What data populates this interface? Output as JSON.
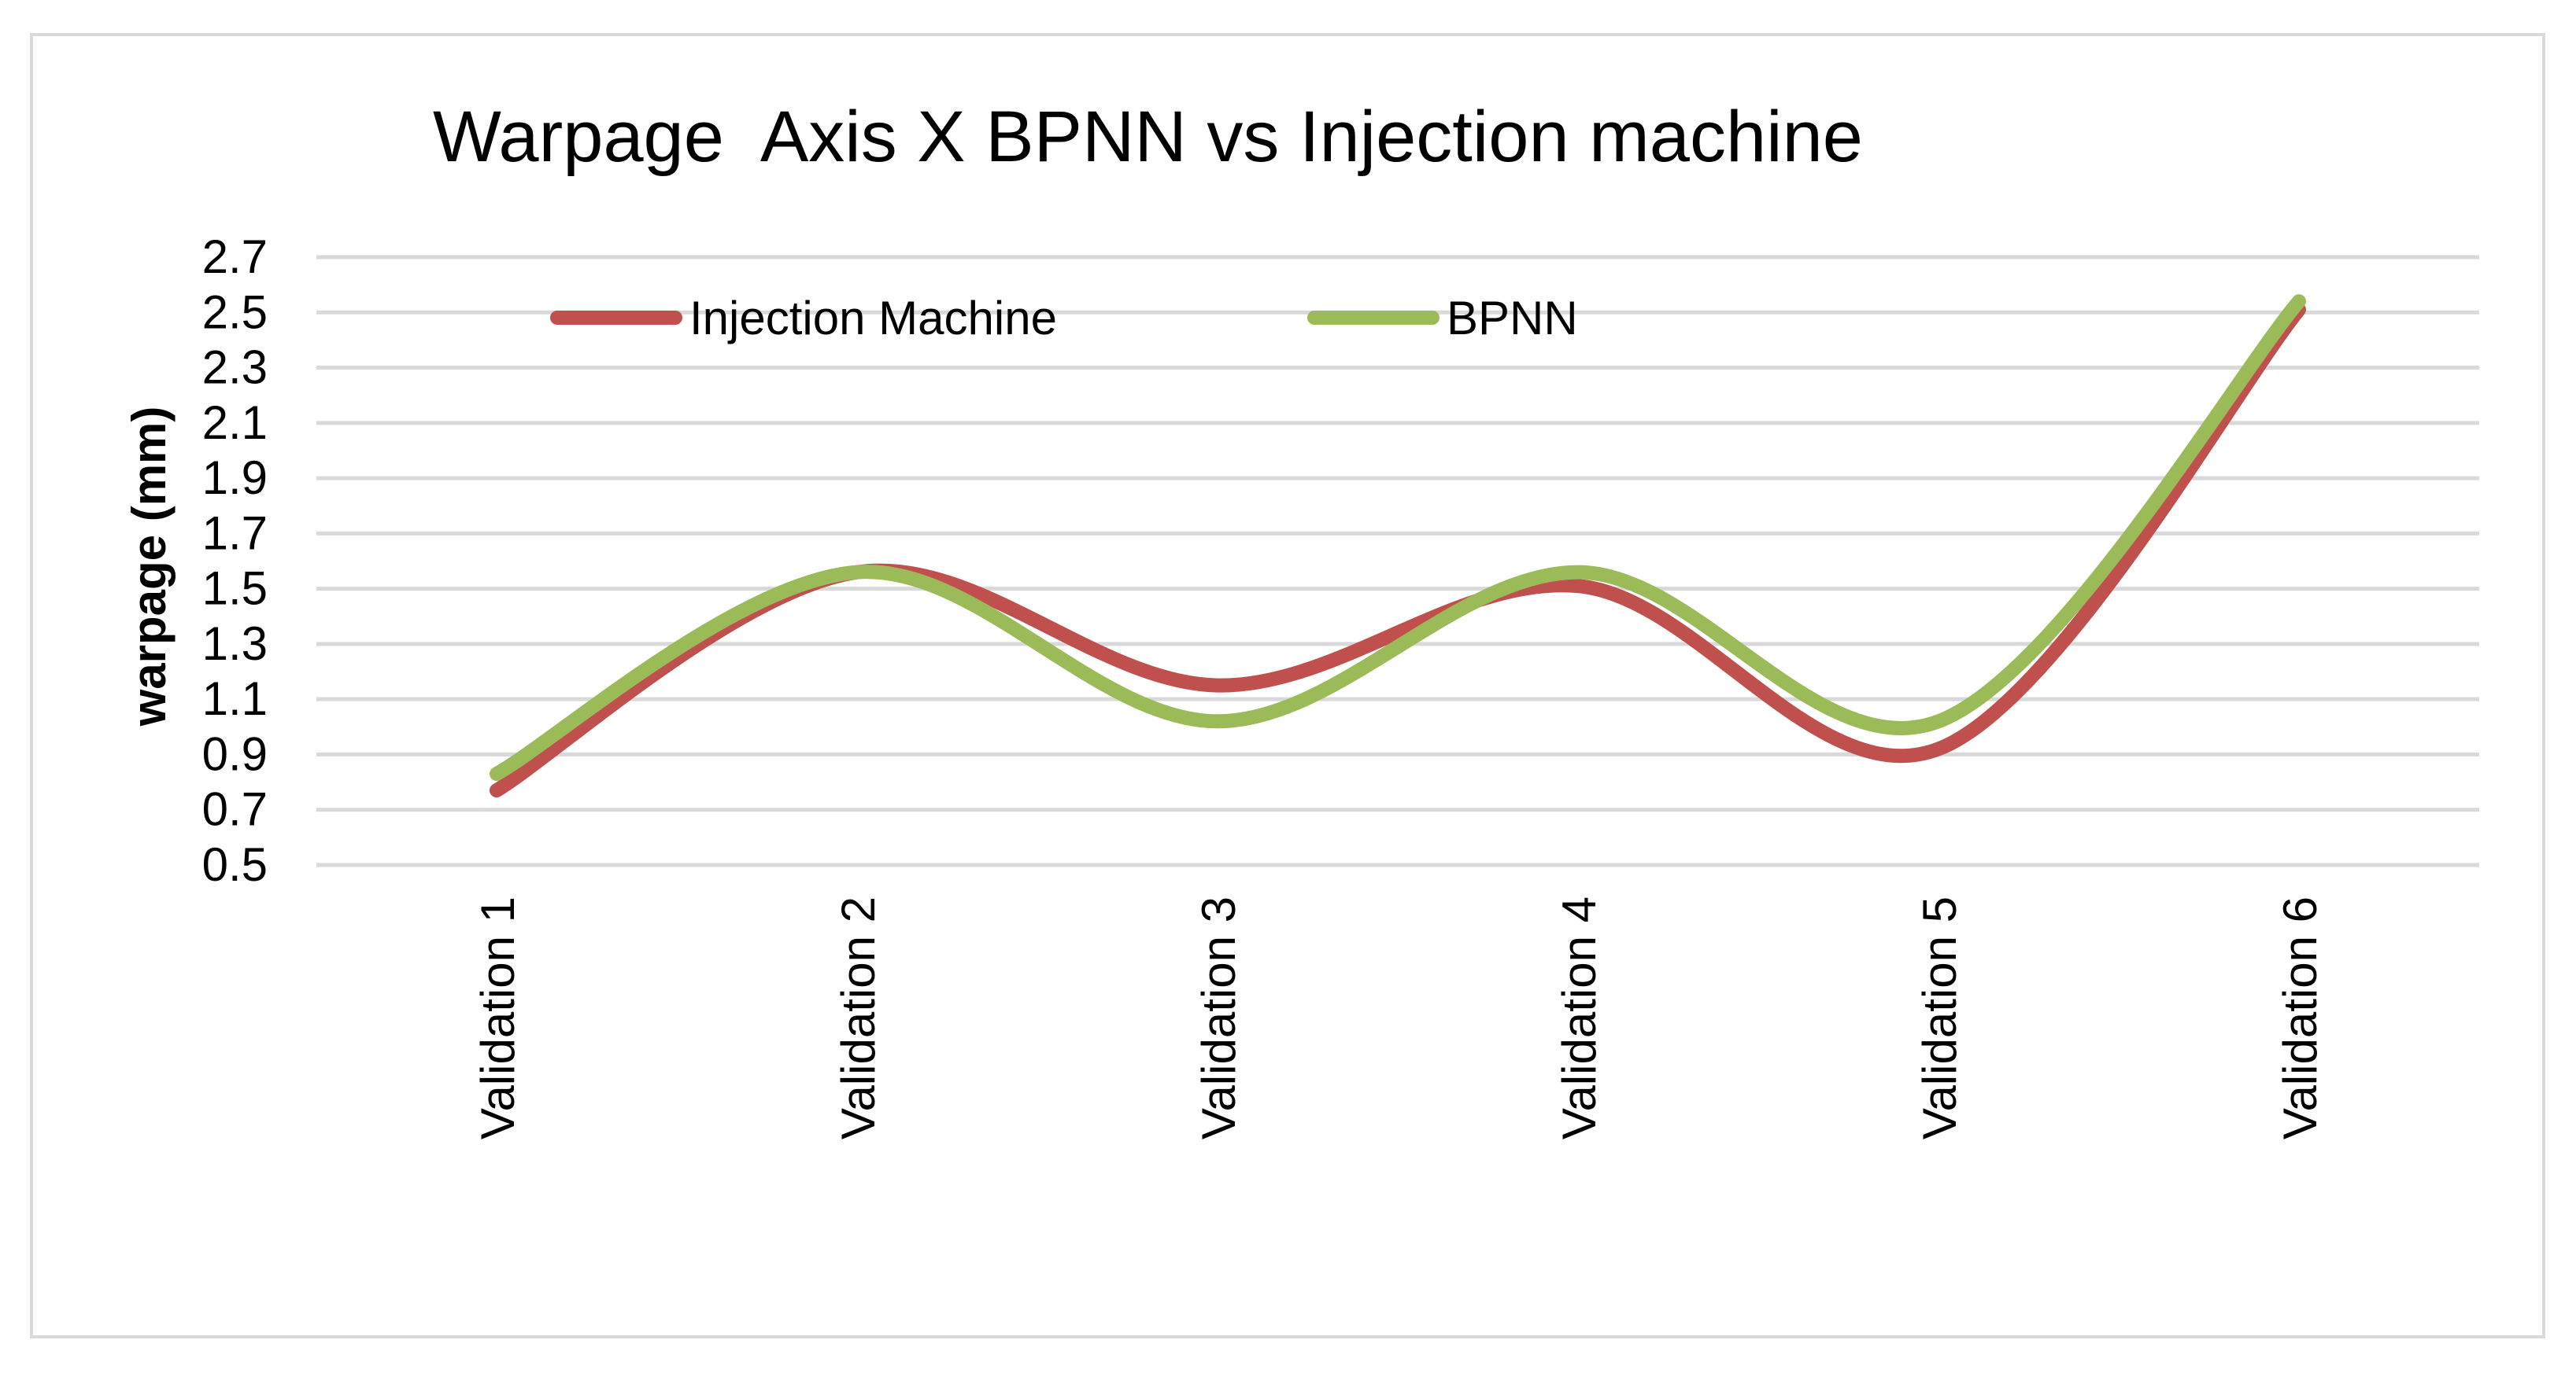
{
  "chart_data": {
    "type": "line",
    "title": "Warpage  Axis X BPNN vs Injection machine",
    "xlabel": "",
    "ylabel": "warpage (mm)",
    "categories": [
      "Validation 1",
      "Validation 2",
      "Validation 3",
      "Validation 4",
      "Validation 5",
      "Validation 6"
    ],
    "ylim": [
      0.5,
      2.7
    ],
    "yticks": [
      "0.5",
      "0.7",
      "0.9",
      "1.1",
      "1.3",
      "1.5",
      "1.7",
      "1.9",
      "2.1",
      "2.3",
      "2.5",
      "2.7"
    ],
    "grid": true,
    "smooth": true,
    "legend_position": "top",
    "series": [
      {
        "name": "Injection Machine",
        "color": "#c0504d",
        "values": [
          0.77,
          1.56,
          1.15,
          1.51,
          0.92,
          2.51
        ]
      },
      {
        "name": "BPNN",
        "color": "#9bbb59",
        "values": [
          0.83,
          1.56,
          1.02,
          1.56,
          1.02,
          2.54
        ]
      }
    ]
  }
}
